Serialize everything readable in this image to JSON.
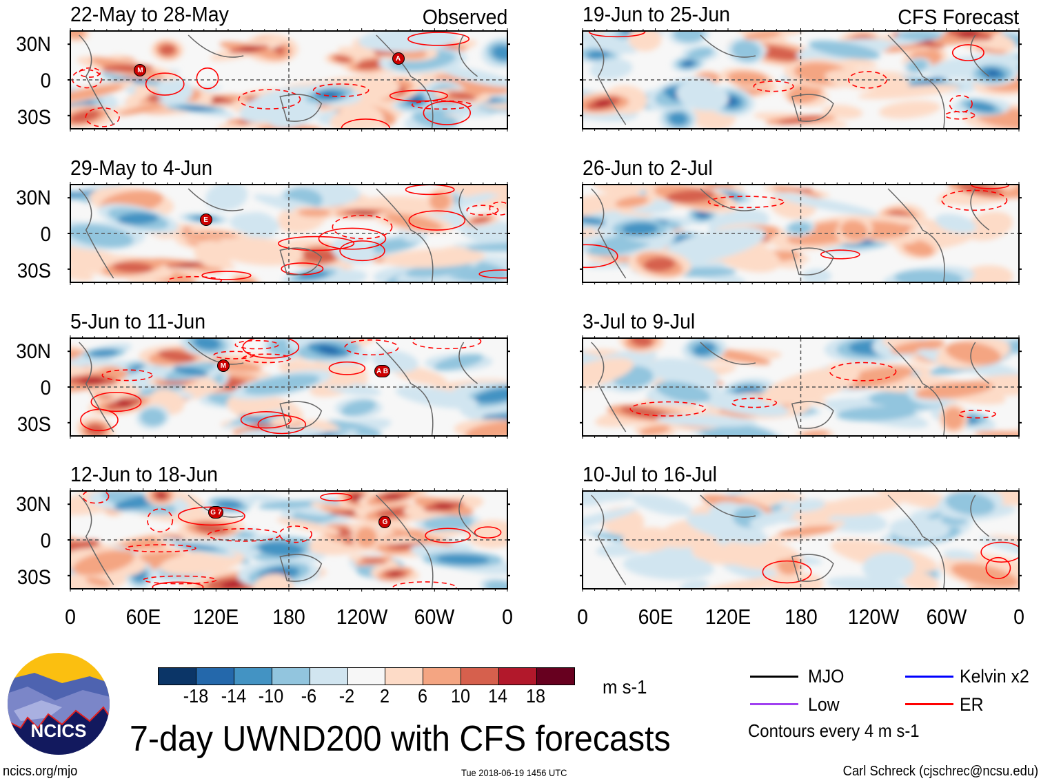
{
  "panels": [
    {
      "title": "22-May to 28-May",
      "label": "Observed",
      "column": "left",
      "storms": [
        "M",
        "A"
      ]
    },
    {
      "title": "29-May to 4-Jun",
      "label": "",
      "column": "left",
      "storms": [
        "E"
      ]
    },
    {
      "title": "5-Jun to 11-Jun",
      "label": "",
      "column": "left",
      "storms": [
        "M",
        "A B"
      ]
    },
    {
      "title": "12-Jun to 18-Jun",
      "label": "",
      "column": "left",
      "storms": [
        "G 7",
        "G"
      ]
    },
    {
      "title": "19-Jun to 25-Jun",
      "label": "CFS Forecast",
      "column": "right",
      "storms": []
    },
    {
      "title": "26-Jun to 2-Jul",
      "label": "",
      "column": "right",
      "storms": []
    },
    {
      "title": "3-Jul to 9-Jul",
      "label": "",
      "column": "right",
      "storms": []
    },
    {
      "title": "10-Jul to 16-Jul",
      "label": "",
      "column": "right",
      "storms": []
    }
  ],
  "y_ticks": [
    "30N",
    "0",
    "30S"
  ],
  "x_ticks": [
    "0",
    "60E",
    "120E",
    "180",
    "120W",
    "60W",
    "0"
  ],
  "colorbar": {
    "colors": [
      "#0b3567",
      "#2468ab",
      "#4393c3",
      "#92c5de",
      "#d1e5f0",
      "#f7f7f7",
      "#fddbc7",
      "#f4a582",
      "#d6604d",
      "#b2182b",
      "#67001f"
    ],
    "labels": [
      "-18",
      "-14",
      "-10",
      "-6",
      "-2",
      "2",
      "6",
      "10",
      "14",
      "18"
    ],
    "units": "m s-1"
  },
  "legend": {
    "items": [
      {
        "label": "MJO",
        "color": "#000000"
      },
      {
        "label": "Kelvin x2",
        "color": "#0000ff"
      },
      {
        "label": "Low",
        "color": "#a040f0"
      },
      {
        "label": "ER",
        "color": "#ff0000"
      }
    ],
    "contours_note": "Contours every 4 m s-1"
  },
  "logo_text": "NCICS",
  "main_title": "7-day UWND200 with CFS forecasts",
  "footer": {
    "left": "ncics.org/mjo",
    "center": "Tue 2018-06-19 1456 UTC",
    "right": "Carl Schreck (cjschrec@ncsu.edu)"
  }
}
